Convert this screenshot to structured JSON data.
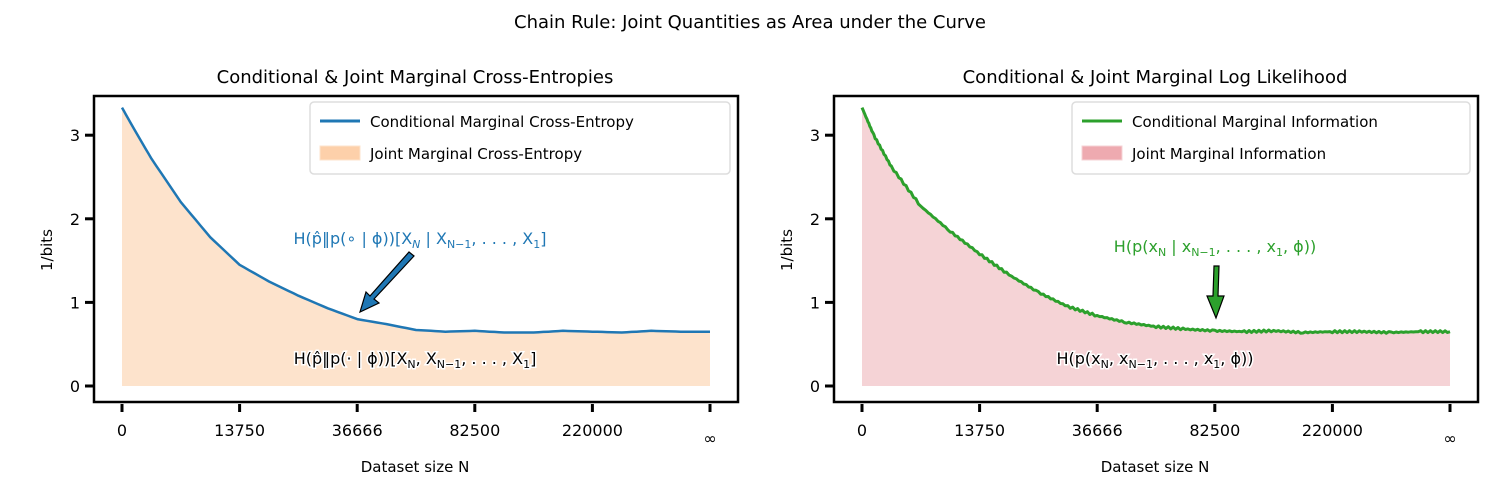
{
  "title": "Chain Rule: Joint Quantities as Area under the Curve",
  "colors": {
    "blue": "#1f77b4",
    "orange_fill": "#fde3cc",
    "green": "#2ca02c",
    "red_fill": "#f5d3d6"
  },
  "chart_data": [
    {
      "type": "area",
      "title": "Conditional & Joint Marginal Cross-Entropies",
      "xlabel": "Dataset size N",
      "ylabel": "1/bits",
      "xtick_labels": [
        "0",
        "13750",
        "36666",
        "82500",
        "220000",
        "∞"
      ],
      "ytick_labels": [
        "0",
        "1",
        "2",
        "3"
      ],
      "ylim": [
        0,
        3.45
      ],
      "x": [
        0,
        0.1,
        0.25,
        0.5,
        0.75,
        1,
        1.25,
        1.5,
        1.75,
        2,
        2.25,
        2.5,
        2.75,
        3,
        3.25,
        3.5,
        3.75,
        4,
        4.25,
        4.5,
        4.75,
        5
      ],
      "series": [
        {
          "name": "Conditional Marginal Cross-Entropy",
          "kind": "line",
          "color": "#1f77b4",
          "values": [
            3.33,
            3.08,
            2.72,
            2.2,
            1.78,
            1.45,
            1.25,
            1.08,
            0.93,
            0.8,
            0.74,
            0.67,
            0.65,
            0.66,
            0.64,
            0.64,
            0.66,
            0.65,
            0.64,
            0.66,
            0.65,
            0.65
          ]
        },
        {
          "name": "Joint Marginal Cross-Entropy",
          "kind": "fill",
          "color": "#fde3cc"
        }
      ],
      "annotations": [
        {
          "text": "H(p̂‖p(∘ | ϕ))[X_N | X_{N−1}, . . . , X_1]",
          "color": "#1f77b4"
        },
        {
          "text": "H(p̂‖p(· | ϕ))[X_N, X_{N−1}, . . . , X_1]",
          "color": "#000000"
        }
      ],
      "legend_position": "top-right"
    },
    {
      "type": "area",
      "title": "Conditional & Joint Marginal Log Likelihood",
      "xlabel": "Dataset size N",
      "ylabel": "1/bits",
      "xtick_labels": [
        "0",
        "13750",
        "36666",
        "82500",
        "220000",
        "∞"
      ],
      "ytick_labels": [
        "0",
        "1",
        "2",
        "3"
      ],
      "ylim": [
        0,
        3.45
      ],
      "x": [
        0,
        0.1,
        0.25,
        0.5,
        0.75,
        1,
        1.25,
        1.5,
        1.75,
        2,
        2.25,
        2.5,
        2.75,
        3,
        3.25,
        3.5,
        3.75,
        4,
        4.25,
        4.5,
        4.75,
        5
      ],
      "series": [
        {
          "name": "Conditional Marginal Information",
          "kind": "line",
          "color": "#2ca02c",
          "values": [
            3.33,
            3.0,
            2.62,
            2.15,
            1.85,
            1.58,
            1.33,
            1.12,
            0.95,
            0.84,
            0.76,
            0.71,
            0.68,
            0.66,
            0.65,
            0.66,
            0.64,
            0.65,
            0.65,
            0.64,
            0.65,
            0.65
          ]
        },
        {
          "name": "Joint Marginal Information",
          "kind": "fill",
          "color": "#f5d3d6"
        }
      ],
      "annotations": [
        {
          "text": "H(p(x_N | x_{N−1}, . . . , x_1, ϕ))",
          "color": "#2ca02c"
        },
        {
          "text": "H(p(x_N, x_{N−1}, . . . , x_1, ϕ))",
          "color": "#000000"
        }
      ],
      "legend_position": "top-right"
    }
  ],
  "labels": {
    "left_ann_top": [
      "H(p̂‖p(∘ | ϕ))[X",
      "N",
      " | X",
      "N−1",
      ", . . . , X",
      "1",
      "]"
    ],
    "left_ann_bottom": [
      "H(p̂‖p(· | ϕ))[X",
      "N",
      ", X",
      "N−1",
      ", . . . , X",
      "1",
      "]"
    ],
    "right_ann_top": [
      "H(p(x",
      "N",
      " | x",
      "N−1",
      ", . . . , x",
      "1",
      ", ϕ))"
    ],
    "right_ann_bottom": [
      "H(p(x",
      "N",
      ", x",
      "N−1",
      ", . . . , x",
      "1",
      ", ϕ))"
    ]
  }
}
